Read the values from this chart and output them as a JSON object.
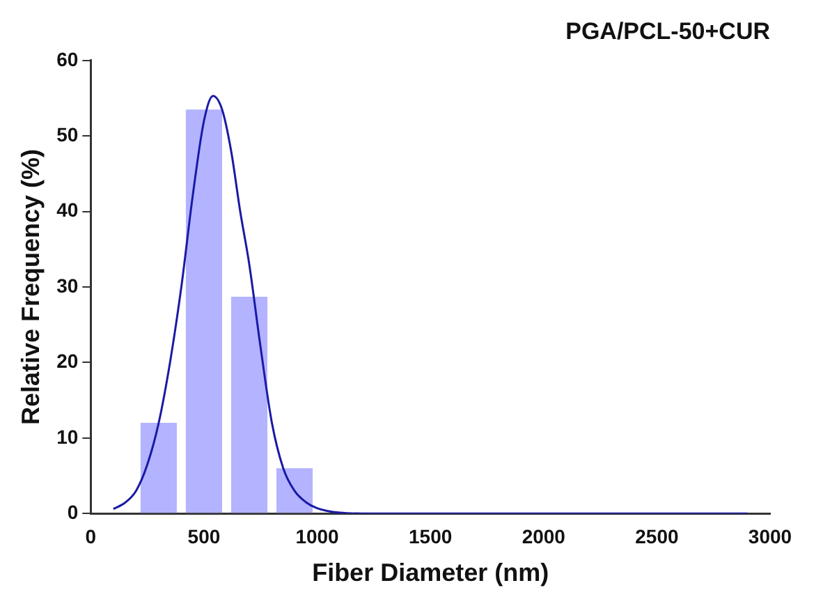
{
  "chart_data": {
    "type": "histogram",
    "title": "PGA/PCL-50+CUR",
    "xlabel": "Fiber Diameter (nm)",
    "ylabel": "Relative Frequency (%)",
    "bins": [
      200,
      400,
      600,
      800,
      1000
    ],
    "values": [
      12,
      53.5,
      28.7,
      6
    ],
    "color": "#b3b3ff",
    "series": [
      {
        "type": "line",
        "color": "#1a1aa6",
        "x": [
          100,
          150,
          200,
          250,
          300,
          350,
          400,
          450,
          500,
          540,
          580,
          620,
          660,
          700,
          750,
          800,
          850,
          900,
          950,
          1000,
          1100,
          1200,
          1500,
          2000,
          2500,
          2900
        ],
        "values": [
          0.6,
          1.4,
          3,
          6.5,
          12,
          20,
          30,
          42,
          52,
          55.3,
          53.5,
          48,
          40,
          33,
          22,
          12,
          6,
          3,
          1.5,
          0.7,
          0.1,
          0,
          0,
          0,
          0,
          0
        ]
      }
    ],
    "xlim": [
      0,
      3000
    ],
    "xticks": [
      0,
      500,
      1000,
      1500,
      2000,
      2500,
      3000
    ],
    "ylim": [
      0,
      60
    ],
    "yticks": [
      0,
      10,
      20,
      30,
      40,
      50,
      60
    ],
    "grid": false,
    "legend": false,
    "marker": "none",
    "line_style": "solid"
  }
}
